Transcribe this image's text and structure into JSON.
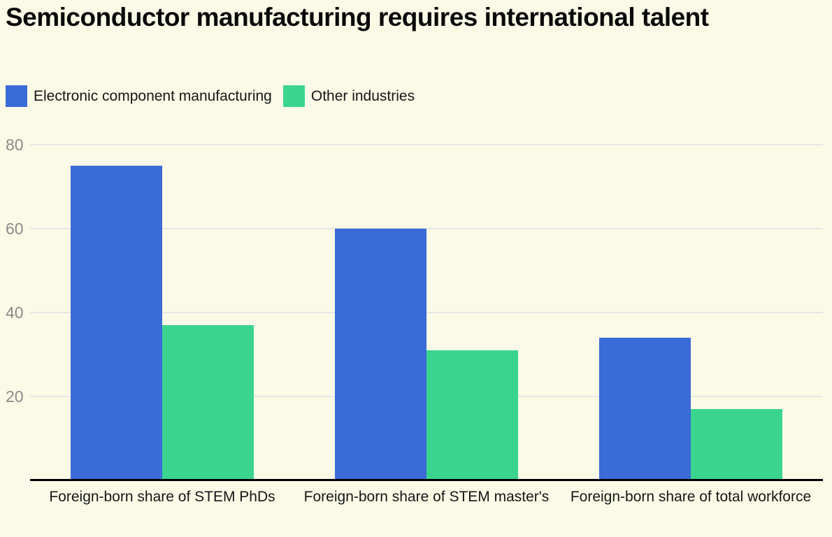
{
  "header": {
    "title": "Semiconductor manufacturing requires international talent"
  },
  "colors": {
    "background": "#fafae7",
    "grid": "#e5e7e3",
    "axis": "#000000",
    "tick_label": "#8a8a8a",
    "text": "#161616",
    "blue": "#3b6bd6",
    "green": "#3bd48e"
  },
  "chart_data": {
    "type": "bar",
    "title": "Semiconductor manufacturing requires international talent",
    "categories": [
      "Foreign-born share of STEM PhDs",
      "Foreign-born share of STEM master's",
      "Foreign-born share of total workforce"
    ],
    "series": [
      {
        "name": "Electronic component manufacturing",
        "color": "#3b6bd6",
        "values": [
          75,
          60,
          34
        ]
      },
      {
        "name": "Other industries",
        "color": "#3bd48e",
        "values": [
          37,
          31,
          17
        ]
      }
    ],
    "xlabel": "",
    "ylabel": "",
    "y_ticks": [
      20,
      40,
      60,
      80
    ],
    "ylim": [
      0,
      83
    ],
    "grid": true,
    "legend_position": "top-left"
  }
}
